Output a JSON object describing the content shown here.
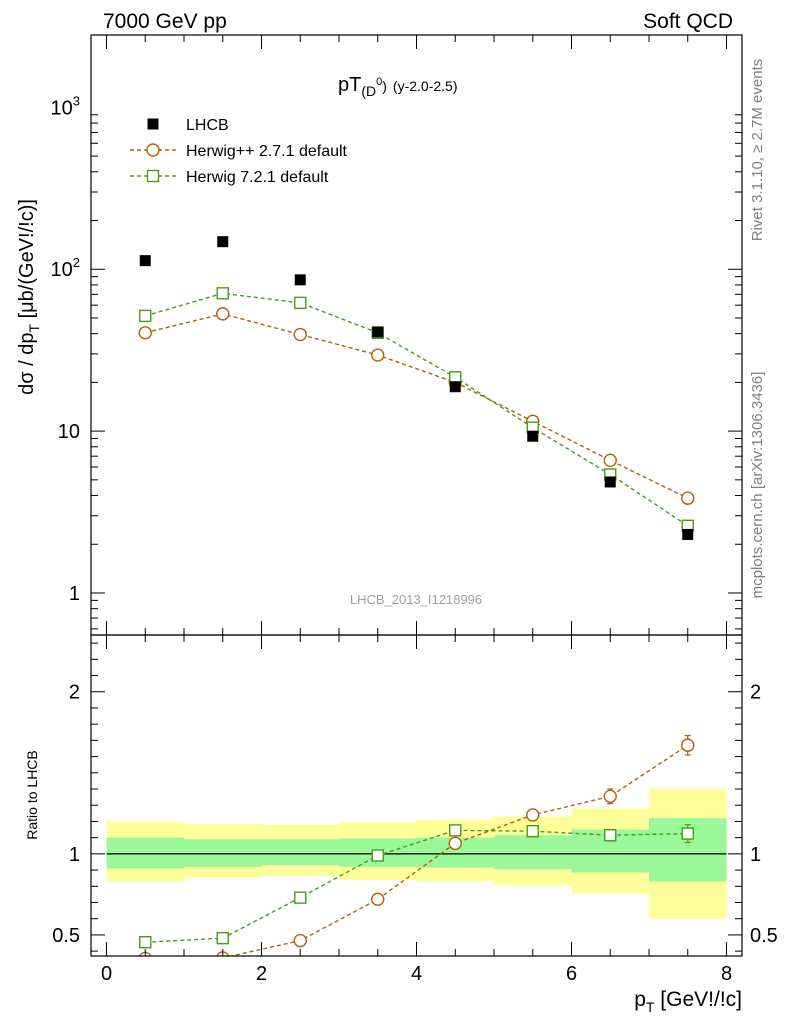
{
  "header": {
    "left": "7000 GeV pp",
    "right": "Soft QCD"
  },
  "side_labels": {
    "rivet": "Rivet 3.1.10, ≥ 2.7M events",
    "mcplots": "mcplots.cern.ch [arXiv:1306.3436]"
  },
  "watermark": "LHCB_2013_I1218996",
  "chart_data": [
    {
      "type": "scatter",
      "title_main": "pT",
      "title_sub": "(D",
      "title_sup": "0",
      "title_close": ")",
      "title_rest": "(y-2.0-2.5)",
      "ylabel": "dσ / dp",
      "ylabel_sub": "T",
      "ylabel_rest": " [μb/(GeV!/!c)]",
      "yscale": "log",
      "ylim": [
        0.55,
        2800
      ],
      "xlim": [
        -0.2,
        8.2
      ],
      "y_ticks": [
        {
          "v": 1,
          "label": "1"
        },
        {
          "v": 10,
          "label": "10"
        },
        {
          "v": 100,
          "label": "10",
          "sup": "2"
        },
        {
          "v": 1000,
          "label": "10",
          "sup": "3"
        }
      ],
      "legend": {
        "placement": "top-left",
        "entries": [
          {
            "label": "LHCB",
            "color": "#000000",
            "marker": "filled-square"
          },
          {
            "label": "Herwig++ 2.7.1 default",
            "color": "#b45f06",
            "marker": "open-circle"
          },
          {
            "label": "Herwig 7.2.1 default",
            "color": "#4b9a1a",
            "marker": "open-square"
          }
        ]
      },
      "x": [
        0.5,
        1.5,
        2.5,
        3.5,
        4.5,
        5.5,
        6.5,
        7.5
      ],
      "series": [
        {
          "name": "LHCB",
          "values": [
            113,
            148,
            86,
            41,
            18.8,
            9.3,
            4.85,
            2.3
          ]
        },
        {
          "name": "Herwig++ 2.7.1 default",
          "values": [
            40.5,
            53,
            39.5,
            29.5,
            20,
            11.5,
            6.6,
            3.85
          ]
        },
        {
          "name": "Herwig 7.2.1 default",
          "values": [
            51.5,
            71,
            62,
            40.5,
            21.5,
            10.5,
            5.4,
            2.6
          ]
        }
      ]
    },
    {
      "type": "scatter",
      "ylabel": "Ratio to LHCB",
      "xlabel": "p",
      "xlabel_sub": "T",
      "xlabel_rest": " [GeV!/!c]",
      "ylim": [
        0.37,
        2.35
      ],
      "xlim": [
        -0.2,
        8.2
      ],
      "x_ticks": [
        0,
        2,
        4,
        6,
        8
      ],
      "y_ticks": [
        {
          "v": 0.5,
          "label": "0.5"
        },
        {
          "v": 1,
          "label": "1"
        },
        {
          "v": 2,
          "label": "2"
        }
      ],
      "band_colors": {
        "outer": "#ffff9a",
        "inner": "#9af89a"
      },
      "bands": [
        {
          "x0": 0,
          "x1": 1,
          "outer": [
            0.83,
            1.2
          ],
          "inner": [
            0.91,
            1.1
          ]
        },
        {
          "x0": 1,
          "x1": 2,
          "outer": [
            0.855,
            1.185
          ],
          "inner": [
            0.92,
            1.09
          ]
        },
        {
          "x0": 2,
          "x1": 3,
          "outer": [
            0.865,
            1.18
          ],
          "inner": [
            0.93,
            1.09
          ]
        },
        {
          "x0": 3,
          "x1": 4,
          "outer": [
            0.84,
            1.195
          ],
          "inner": [
            0.92,
            1.095
          ]
        },
        {
          "x0": 4,
          "x1": 5,
          "outer": [
            0.83,
            1.21
          ],
          "inner": [
            0.915,
            1.1
          ]
        },
        {
          "x0": 5,
          "x1": 6,
          "outer": [
            0.805,
            1.23
          ],
          "inner": [
            0.905,
            1.115
          ]
        },
        {
          "x0": 6,
          "x1": 7,
          "outer": [
            0.755,
            1.28
          ],
          "inner": [
            0.885,
            1.15
          ]
        },
        {
          "x0": 7,
          "x1": 8,
          "outer": [
            0.6,
            1.4
          ],
          "inner": [
            0.83,
            1.22
          ]
        }
      ],
      "x": [
        0.5,
        1.5,
        2.5,
        3.5,
        4.5,
        5.5,
        6.5,
        7.5
      ],
      "series": [
        {
          "name": "Herwig++ 2.7.1 default",
          "values": [
            0.355,
            0.358,
            0.465,
            0.72,
            1.065,
            1.24,
            1.355,
            1.67
          ],
          "errors": [
            0,
            0,
            0,
            0,
            0,
            0.035,
            0.045,
            0.06
          ]
        },
        {
          "name": "Herwig 7.2.1 default",
          "values": [
            0.455,
            0.48,
            0.73,
            0.99,
            1.145,
            1.14,
            1.115,
            1.125
          ],
          "errors": [
            0,
            0,
            0,
            0,
            0,
            0.03,
            0.035,
            0.055
          ]
        }
      ],
      "reference_value": 1
    }
  ]
}
